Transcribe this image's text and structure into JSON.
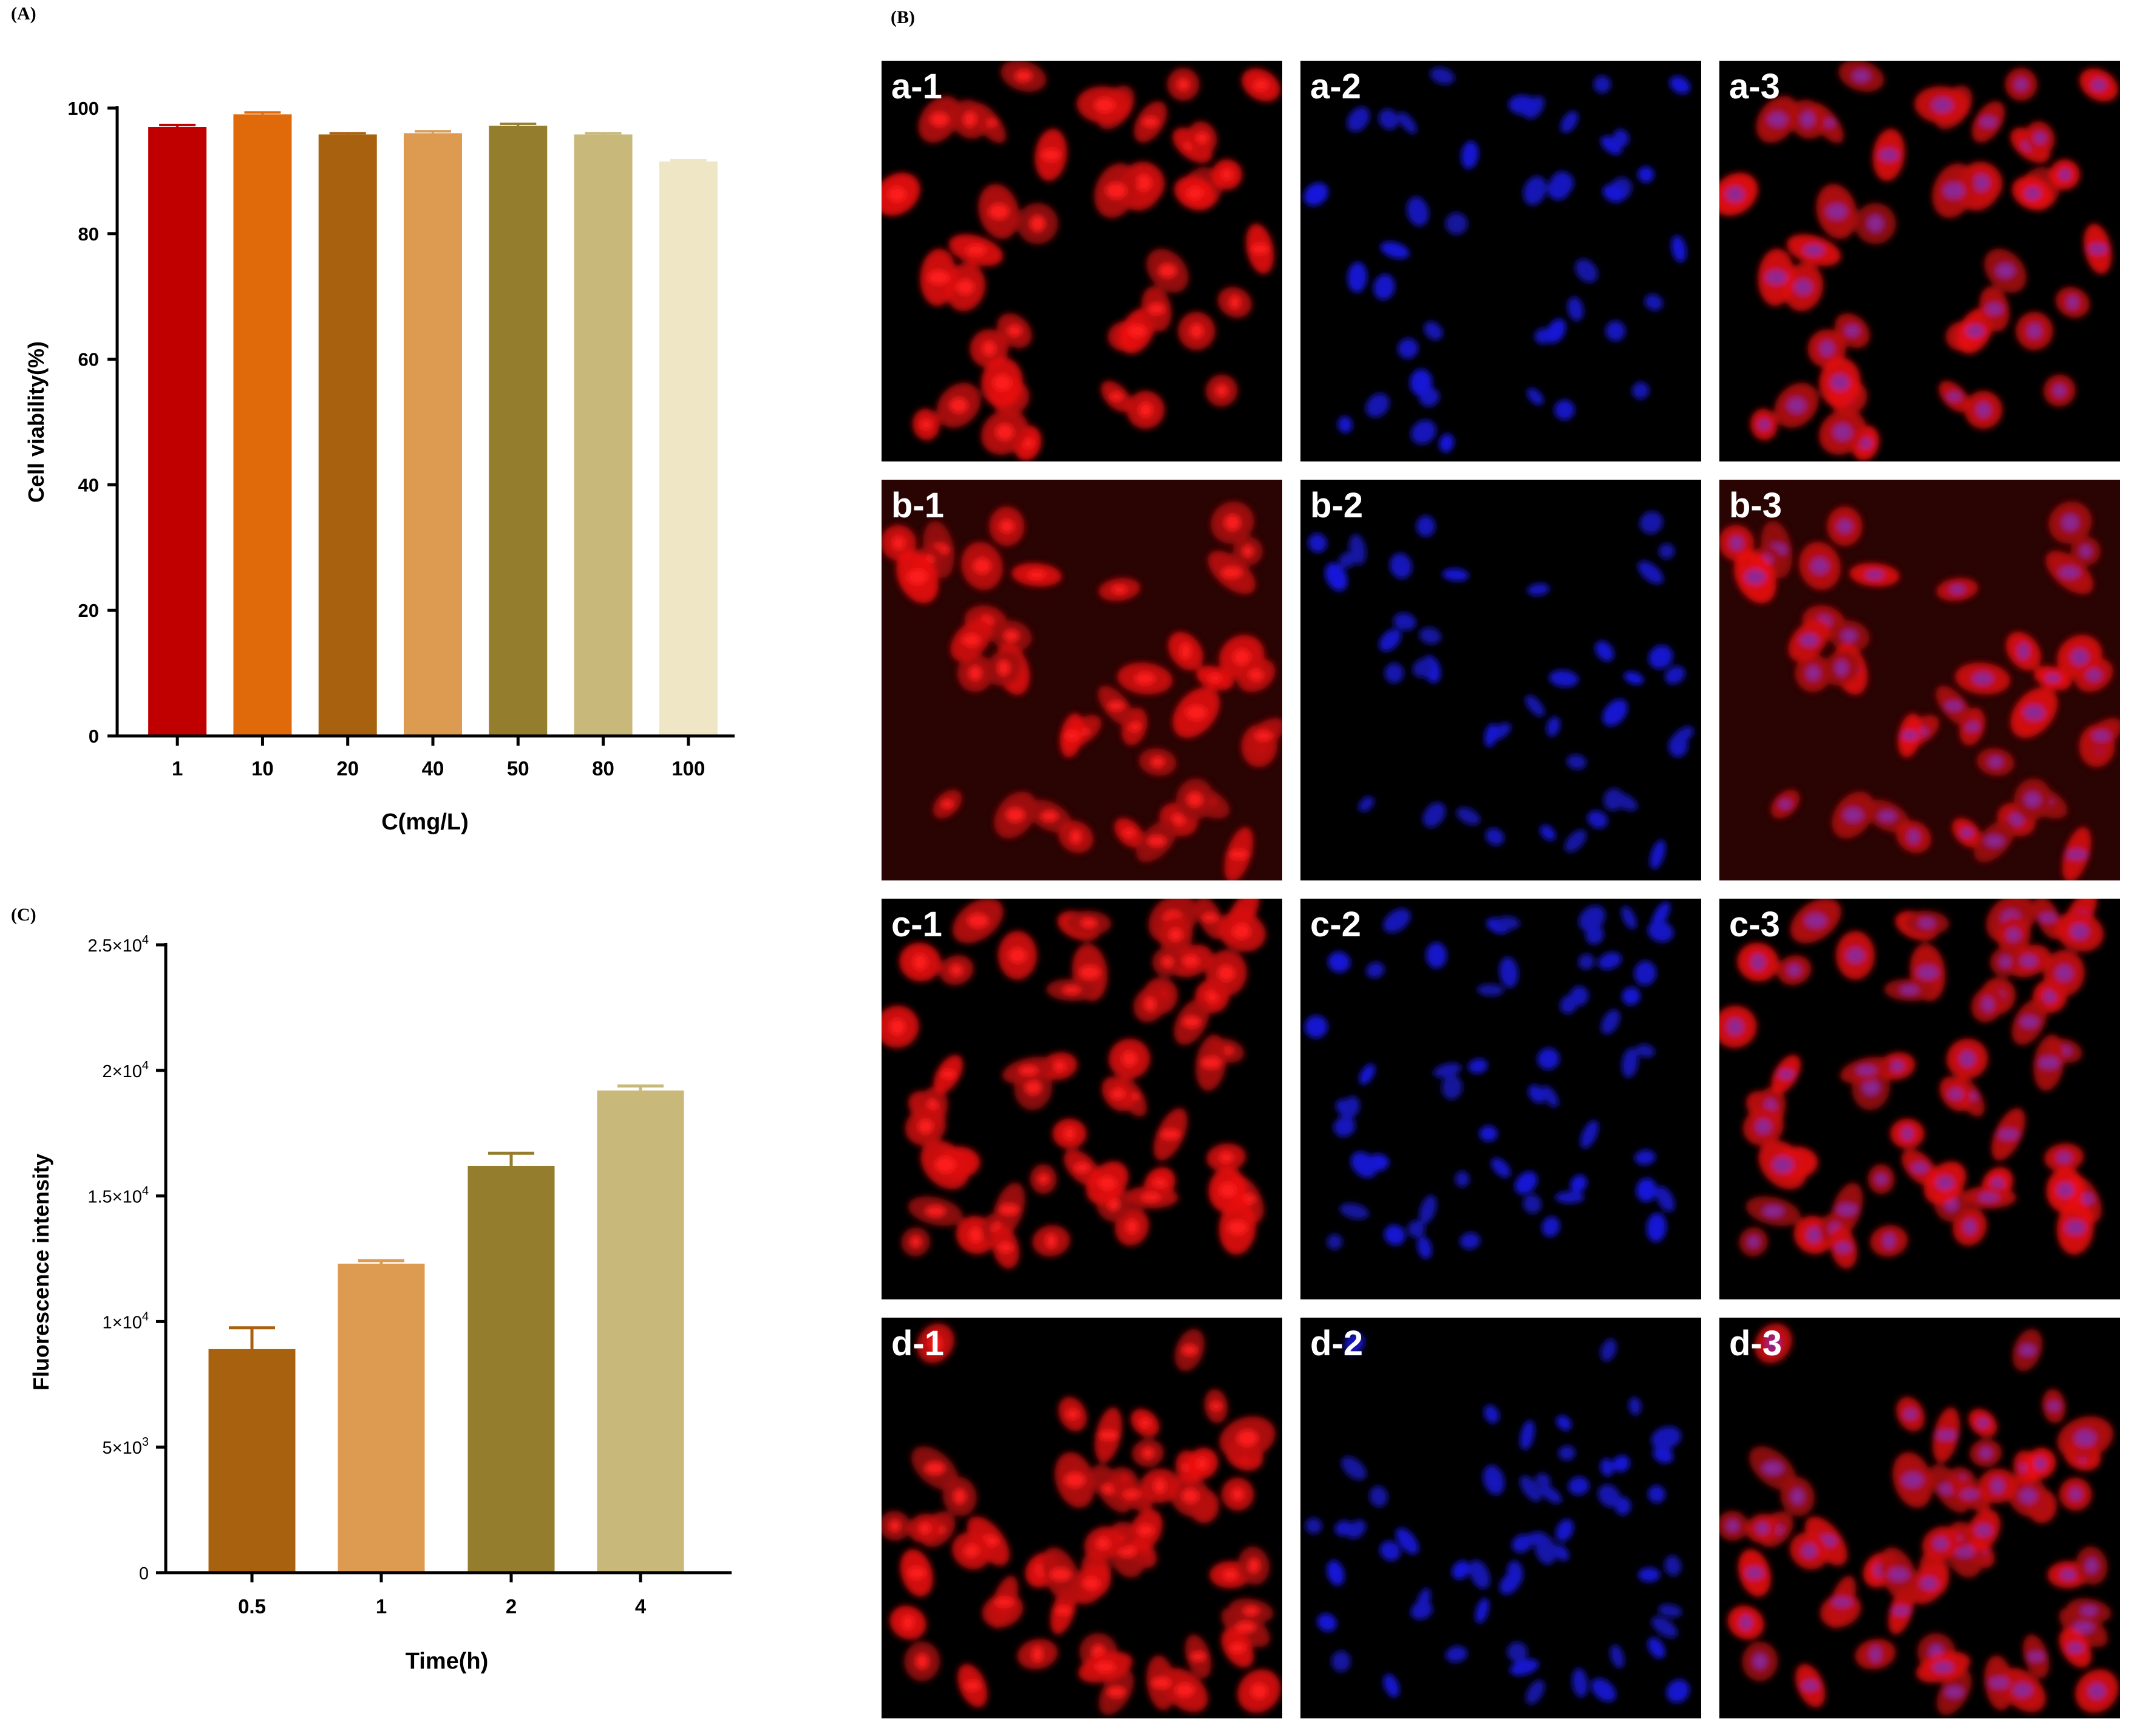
{
  "panels": {
    "a_label": "(A)",
    "b_label": "(B)",
    "c_label": "(C)"
  },
  "chart_data": [
    {
      "panel": "A",
      "type": "bar",
      "categories": [
        "1",
        "10",
        "20",
        "40",
        "50",
        "80",
        "100"
      ],
      "values": [
        97.0,
        99.0,
        95.8,
        96.0,
        97.2,
        95.8,
        91.5
      ],
      "errors": [
        0.3,
        0.3,
        0.2,
        0.3,
        0.3,
        0.2,
        0.2
      ],
      "colors": [
        "#c00000",
        "#e06a0a",
        "#a8620f",
        "#dc9b50",
        "#957d2e",
        "#c8b97a",
        "#efe6c6"
      ],
      "xlabel": "C(mg/L)",
      "ylabel": "Cell viability(%)",
      "ylim": [
        0,
        100
      ],
      "yticks": [
        "0",
        "20",
        "40",
        "60",
        "80",
        "100"
      ]
    },
    {
      "panel": "C",
      "type": "bar",
      "categories": [
        "0.5",
        "1",
        "2",
        "4"
      ],
      "values": [
        8900,
        12300,
        16200,
        19200
      ],
      "errors": [
        850,
        120,
        500,
        180
      ],
      "colors": [
        "#a8620f",
        "#dc9b50",
        "#957d2e",
        "#c8b97a"
      ],
      "xlabel": "Time(h)",
      "ylabel": "Fluorescence intensity",
      "ylim": [
        0,
        25000
      ],
      "yticks": [
        {
          "mant": "0",
          "exp": ""
        },
        {
          "mant": "5×10",
          "exp": "3"
        },
        {
          "mant": "1×10",
          "exp": "4"
        },
        {
          "mant": "1.5×10",
          "exp": "4"
        },
        {
          "mant": "2×10",
          "exp": "4"
        },
        {
          "mant": "2.5×10",
          "exp": "4"
        }
      ]
    }
  ],
  "micrographs": [
    {
      "label": "a-1",
      "channel": "red"
    },
    {
      "label": "a-2",
      "channel": "blue"
    },
    {
      "label": "a-3",
      "channel": "merge"
    },
    {
      "label": "b-1",
      "channel": "red"
    },
    {
      "label": "b-2",
      "channel": "blue"
    },
    {
      "label": "b-3",
      "channel": "merge"
    },
    {
      "label": "c-1",
      "channel": "red"
    },
    {
      "label": "c-2",
      "channel": "blue"
    },
    {
      "label": "c-3",
      "channel": "merge"
    },
    {
      "label": "d-1",
      "channel": "red"
    },
    {
      "label": "d-2",
      "channel": "blue"
    },
    {
      "label": "d-3",
      "channel": "merge"
    }
  ]
}
